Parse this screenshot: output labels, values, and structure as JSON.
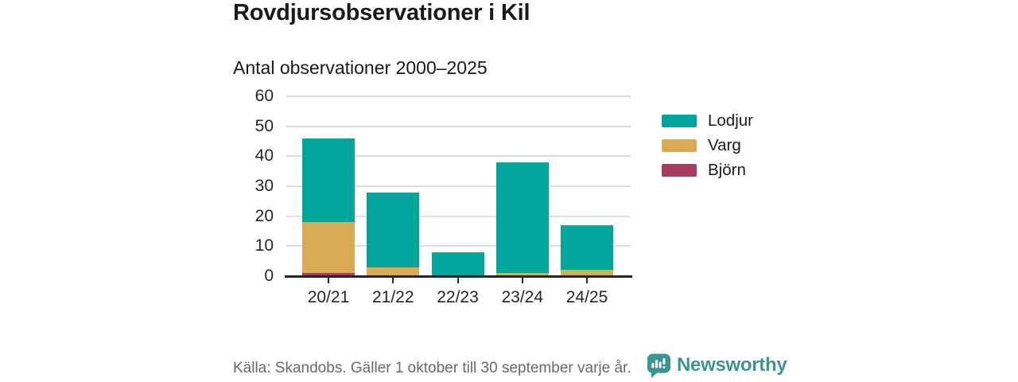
{
  "header": {
    "title": "Rovdjursobservationer i Kil",
    "subtitle": "Antal observationer 2000–2025"
  },
  "chart_data": {
    "type": "bar",
    "stacked": true,
    "title": "Rovdjursobservationer i Kil",
    "subtitle": "Antal observationer 2000–2025",
    "categories": [
      "20/21",
      "21/22",
      "22/23",
      "23/24",
      "24/25"
    ],
    "series": [
      {
        "name": "Lodjur",
        "color": "#00a69b",
        "values": [
          28,
          25,
          8,
          37,
          15
        ]
      },
      {
        "name": "Varg",
        "color": "#d9ab56",
        "values": [
          17,
          3,
          0,
          1,
          2
        ]
      },
      {
        "name": "Björn",
        "color": "#a63c5f",
        "values": [
          1,
          0,
          0,
          0,
          0
        ]
      }
    ],
    "stack_order_bottom_to_top": [
      "Björn",
      "Varg",
      "Lodjur"
    ],
    "xlabel": "",
    "ylabel": "",
    "ylim": [
      0,
      60
    ],
    "yticks": [
      0,
      10,
      20,
      30,
      40,
      50,
      60
    ],
    "grid": true,
    "legend_position": "right"
  },
  "footer": {
    "source": "Källa: Skandobs. Gäller 1 oktober till 30 september varje år.",
    "brand": "Newsworthy",
    "brand_color": "#3a968f"
  },
  "colors": {
    "text_dark": "#1a1a1a",
    "axis": "#262626",
    "gridline": "#dddddd",
    "source_gray": "#696969"
  }
}
